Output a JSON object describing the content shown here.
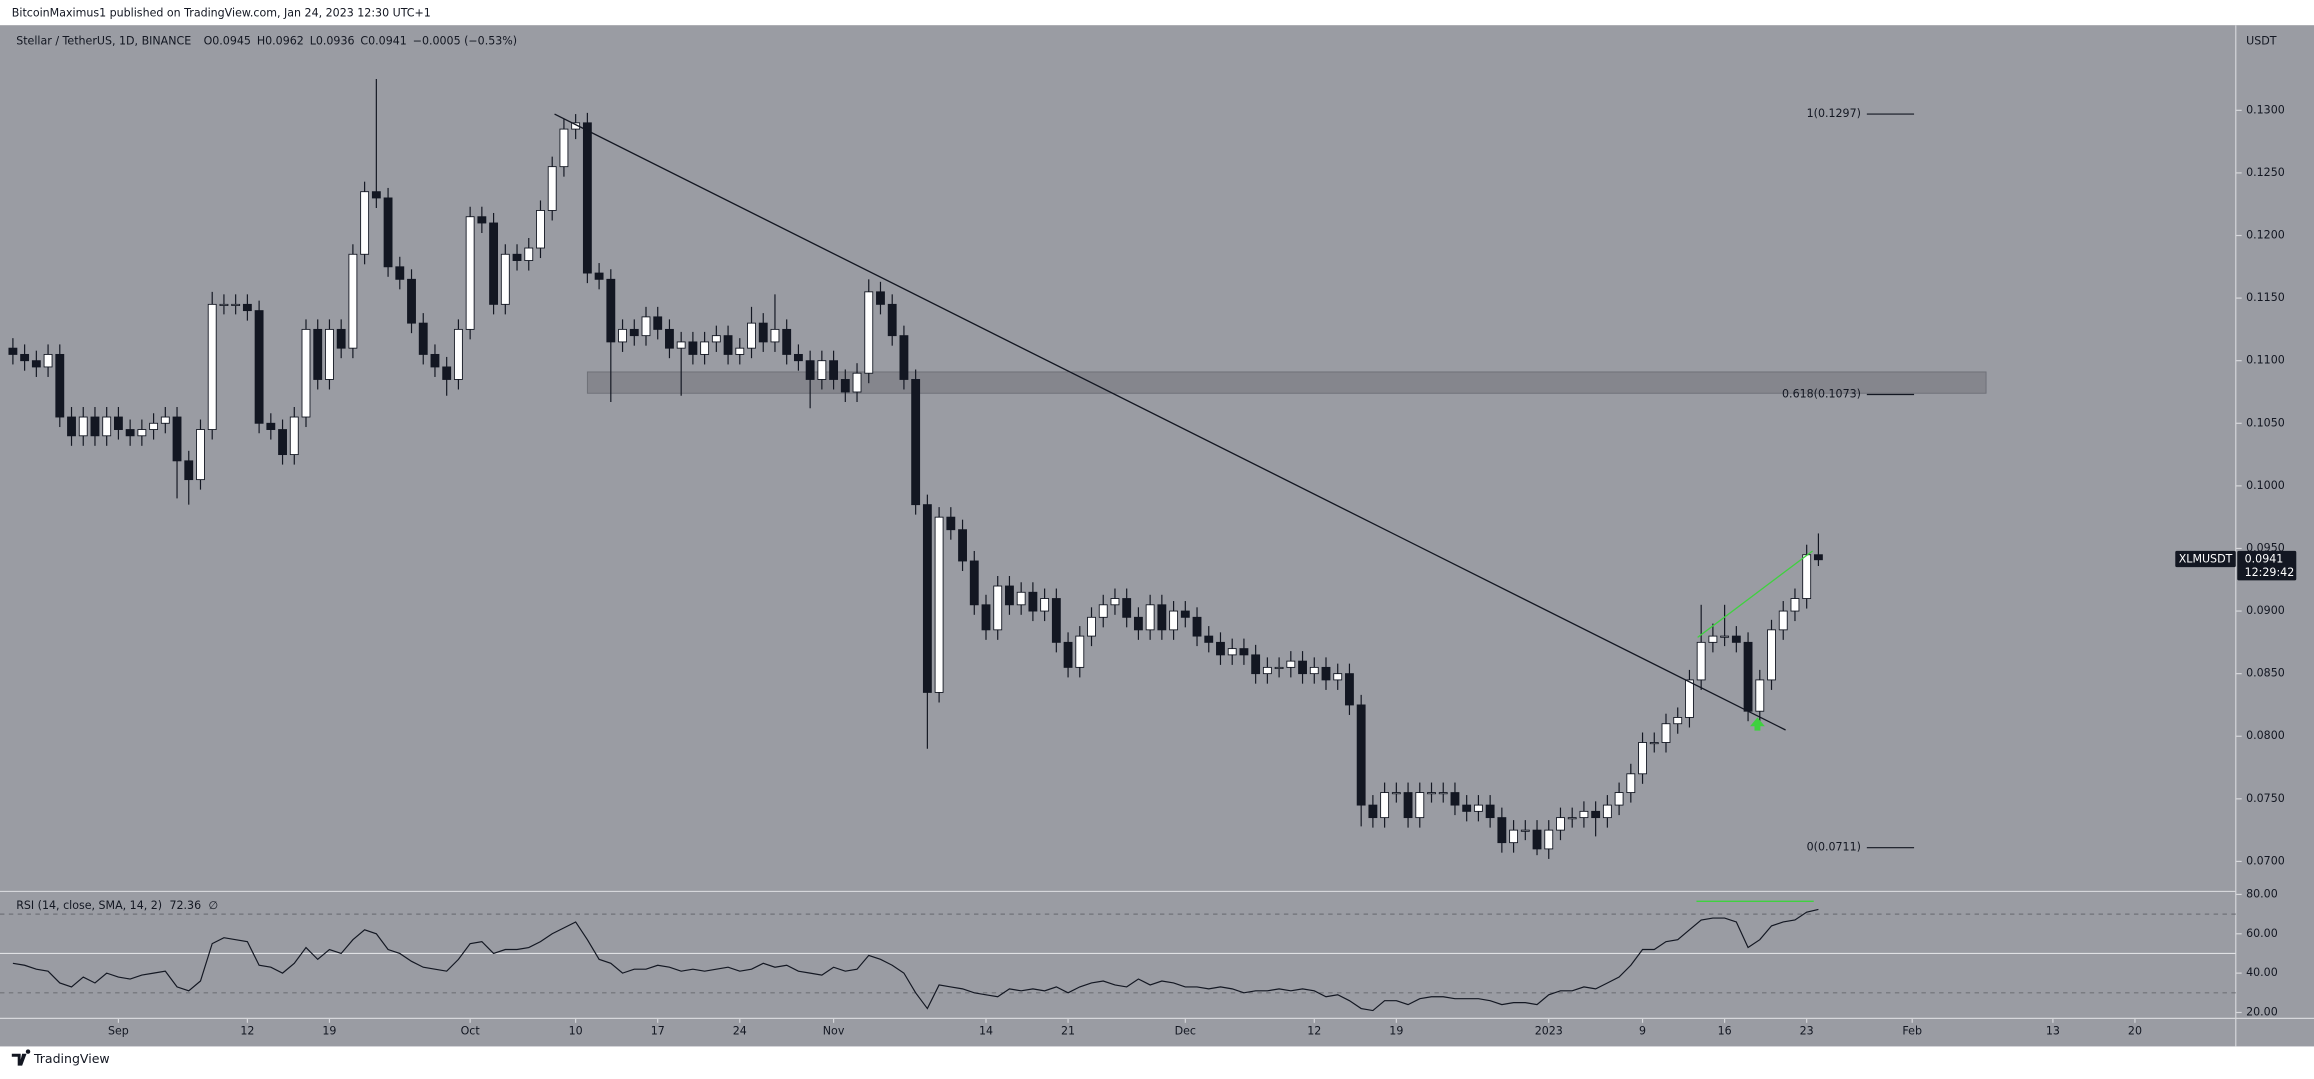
{
  "chart_data": {
    "type": "candlestick",
    "header": "BitcoinMaximus1 published on TradingView.com, Jan 24, 2023 12:30 UTC+1",
    "title": "Stellar / TetherUS, 1D, BINANCE",
    "ohlc_labels": [
      "O",
      "H",
      "L",
      "C"
    ],
    "change": "−0.0005 (−0.53%)",
    "symbol": "XLMUSDT",
    "countdown": "12:29:42",
    "y_axis_label": "USDT",
    "footer": "TradingView",
    "up_color": "#ffffff",
    "down_color": "#131722",
    "background": "#9a9ca3",
    "xlim": [
      -1.1,
      189.6
    ],
    "xticks": [
      {
        "value": 9,
        "label": "Sep"
      },
      {
        "value": 20,
        "label": "12"
      },
      {
        "value": 27,
        "label": "19"
      },
      {
        "value": 39,
        "label": "Oct"
      },
      {
        "value": 48,
        "label": "10"
      },
      {
        "value": 55,
        "label": "17"
      },
      {
        "value": 62,
        "label": "24"
      },
      {
        "value": 70,
        "label": "Nov"
      },
      {
        "value": 83,
        "label": "14"
      },
      {
        "value": 90,
        "label": "21"
      },
      {
        "value": 100,
        "label": "Dec"
      },
      {
        "value": 111,
        "label": "12"
      },
      {
        "value": 118,
        "label": "19"
      },
      {
        "value": 131,
        "label": "2023"
      },
      {
        "value": 139,
        "label": "9"
      },
      {
        "value": 146,
        "label": "16"
      },
      {
        "value": 153,
        "label": "23"
      },
      {
        "value": 162,
        "label": "Feb"
      },
      {
        "value": 174,
        "label": "13"
      },
      {
        "value": 181,
        "label": "20"
      }
    ],
    "ylim": [
      0.0676,
      0.1368
    ],
    "yticks": [
      {
        "value": 0.07,
        "label": "0.0700"
      },
      {
        "value": 0.075,
        "label": "0.0750"
      },
      {
        "value": 0.08,
        "label": "0.0800"
      },
      {
        "value": 0.085,
        "label": "0.0850"
      },
      {
        "value": 0.09,
        "label": "0.0900"
      },
      {
        "value": 0.095,
        "label": "0.0950"
      },
      {
        "value": 0.1,
        "label": "0.1000"
      },
      {
        "value": 0.105,
        "label": "0.1050"
      },
      {
        "value": 0.11,
        "label": "0.1100"
      },
      {
        "value": 0.115,
        "label": "0.1150"
      },
      {
        "value": 0.12,
        "label": "0.1200"
      },
      {
        "value": 0.125,
        "label": "0.1250"
      },
      {
        "value": 0.13,
        "label": "0.1300"
      }
    ],
    "candles": [
      [
        0.111,
        0.1118,
        0.1097,
        0.1105
      ],
      [
        0.1105,
        0.1113,
        0.1092,
        0.11
      ],
      [
        0.11,
        0.1108,
        0.1087,
        0.1095
      ],
      [
        0.1095,
        0.1113,
        0.1087,
        0.1105
      ],
      [
        0.1105,
        0.1113,
        0.1047,
        0.1055
      ],
      [
        0.1055,
        0.1063,
        0.1032,
        0.104
      ],
      [
        0.104,
        0.1063,
        0.1032,
        0.1055
      ],
      [
        0.1055,
        0.1063,
        0.1032,
        0.104
      ],
      [
        0.104,
        0.1063,
        0.1032,
        0.1055
      ],
      [
        0.1055,
        0.1063,
        0.1037,
        0.1045
      ],
      [
        0.1045,
        0.1053,
        0.1032,
        0.104
      ],
      [
        0.104,
        0.1053,
        0.1032,
        0.1045
      ],
      [
        0.1045,
        0.1058,
        0.1037,
        0.105
      ],
      [
        0.105,
        0.1063,
        0.1042,
        0.1055
      ],
      [
        0.1055,
        0.1063,
        0.099,
        0.102
      ],
      [
        0.102,
        0.1028,
        0.0985,
        0.1005
      ],
      [
        0.1005,
        0.1053,
        0.0997,
        0.1045
      ],
      [
        0.1045,
        0.1155,
        0.1037,
        0.1145
      ],
      [
        0.1145,
        0.1153,
        0.1137,
        0.1145
      ],
      [
        0.1145,
        0.1153,
        0.1137,
        0.1145
      ],
      [
        0.1145,
        0.1153,
        0.1132,
        0.114
      ],
      [
        0.114,
        0.1148,
        0.1042,
        0.105
      ],
      [
        0.105,
        0.1058,
        0.1037,
        0.1045
      ],
      [
        0.1045,
        0.1053,
        0.1017,
        0.1025
      ],
      [
        0.1025,
        0.1063,
        0.1017,
        0.1055
      ],
      [
        0.1055,
        0.1133,
        0.1047,
        0.1125
      ],
      [
        0.1125,
        0.1133,
        0.1077,
        0.1085
      ],
      [
        0.1085,
        0.1133,
        0.1077,
        0.1125
      ],
      [
        0.1125,
        0.1133,
        0.1102,
        0.111
      ],
      [
        0.111,
        0.1193,
        0.1102,
        0.1185
      ],
      [
        0.1185,
        0.1243,
        0.1177,
        0.1235
      ],
      [
        0.1235,
        0.1325,
        0.1222,
        0.123
      ],
      [
        0.123,
        0.1238,
        0.1167,
        0.1175
      ],
      [
        0.1175,
        0.1183,
        0.1157,
        0.1165
      ],
      [
        0.1165,
        0.1173,
        0.1122,
        0.113
      ],
      [
        0.113,
        0.1138,
        0.1097,
        0.1105
      ],
      [
        0.1105,
        0.1113,
        0.1087,
        0.1095
      ],
      [
        0.1095,
        0.1103,
        0.1072,
        0.1085
      ],
      [
        0.1085,
        0.1133,
        0.1077,
        0.1125
      ],
      [
        0.1125,
        0.1223,
        0.1117,
        0.1215
      ],
      [
        0.1215,
        0.1223,
        0.1202,
        0.121
      ],
      [
        0.121,
        0.1218,
        0.1137,
        0.1145
      ],
      [
        0.1145,
        0.1193,
        0.1137,
        0.1185
      ],
      [
        0.1185,
        0.1193,
        0.1172,
        0.118
      ],
      [
        0.118,
        0.1198,
        0.1172,
        0.119
      ],
      [
        0.119,
        0.1228,
        0.1182,
        0.122
      ],
      [
        0.122,
        0.1263,
        0.1212,
        0.1255
      ],
      [
        0.1255,
        0.1293,
        0.1247,
        0.1285
      ],
      [
        0.1285,
        0.1297,
        0.1277,
        0.129
      ],
      [
        0.129,
        0.1298,
        0.1162,
        0.117
      ],
      [
        0.117,
        0.1178,
        0.1157,
        0.1165
      ],
      [
        0.1165,
        0.1173,
        0.1067,
        0.1115
      ],
      [
        0.1115,
        0.1133,
        0.1107,
        0.1125
      ],
      [
        0.1125,
        0.1133,
        0.1112,
        0.112
      ],
      [
        0.112,
        0.1143,
        0.1112,
        0.1135
      ],
      [
        0.1135,
        0.1143,
        0.1117,
        0.1125
      ],
      [
        0.1125,
        0.1133,
        0.1102,
        0.111
      ],
      [
        0.111,
        0.1123,
        0.1072,
        0.1115
      ],
      [
        0.1115,
        0.1123,
        0.1097,
        0.1105
      ],
      [
        0.1105,
        0.1123,
        0.1097,
        0.1115
      ],
      [
        0.1115,
        0.1128,
        0.1107,
        0.112
      ],
      [
        0.112,
        0.1128,
        0.1097,
        0.1105
      ],
      [
        0.1105,
        0.1118,
        0.1097,
        0.111
      ],
      [
        0.111,
        0.1143,
        0.1102,
        0.113
      ],
      [
        0.113,
        0.1138,
        0.1107,
        0.1115
      ],
      [
        0.1115,
        0.1153,
        0.1107,
        0.1125
      ],
      [
        0.1125,
        0.1133,
        0.1097,
        0.1105
      ],
      [
        0.1105,
        0.1113,
        0.1092,
        0.11
      ],
      [
        0.11,
        0.1108,
        0.1062,
        0.1085
      ],
      [
        0.1085,
        0.1108,
        0.1077,
        0.11
      ],
      [
        0.11,
        0.1108,
        0.1077,
        0.1085
      ],
      [
        0.1085,
        0.1093,
        0.1067,
        0.1075
      ],
      [
        0.1075,
        0.1098,
        0.1067,
        0.109
      ],
      [
        0.109,
        0.1165,
        0.1082,
        0.1155
      ],
      [
        0.1155,
        0.1163,
        0.1137,
        0.1145
      ],
      [
        0.1145,
        0.1153,
        0.1112,
        0.112
      ],
      [
        0.112,
        0.1128,
        0.1077,
        0.1085
      ],
      [
        0.1085,
        0.1093,
        0.0977,
        0.0985
      ],
      [
        0.0985,
        0.0993,
        0.079,
        0.0835
      ],
      [
        0.0835,
        0.0983,
        0.0827,
        0.0975
      ],
      [
        0.0975,
        0.0983,
        0.0957,
        0.0965
      ],
      [
        0.0965,
        0.0973,
        0.0932,
        0.094
      ],
      [
        0.094,
        0.0948,
        0.0897,
        0.0905
      ],
      [
        0.0905,
        0.0913,
        0.0877,
        0.0885
      ],
      [
        0.0885,
        0.0928,
        0.0877,
        0.092
      ],
      [
        0.092,
        0.0928,
        0.0897,
        0.0905
      ],
      [
        0.0905,
        0.0923,
        0.0897,
        0.0915
      ],
      [
        0.0915,
        0.0923,
        0.0892,
        0.09
      ],
      [
        0.09,
        0.0918,
        0.0892,
        0.091
      ],
      [
        0.091,
        0.0918,
        0.0867,
        0.0875
      ],
      [
        0.0875,
        0.0883,
        0.0847,
        0.0855
      ],
      [
        0.0855,
        0.0888,
        0.0847,
        0.088
      ],
      [
        0.088,
        0.0903,
        0.0872,
        0.0895
      ],
      [
        0.0895,
        0.0913,
        0.0887,
        0.0905
      ],
      [
        0.0905,
        0.0918,
        0.0897,
        0.091
      ],
      [
        0.091,
        0.0918,
        0.0887,
        0.0895
      ],
      [
        0.0895,
        0.0903,
        0.0877,
        0.0885
      ],
      [
        0.0885,
        0.0913,
        0.0877,
        0.0905
      ],
      [
        0.0905,
        0.0913,
        0.0877,
        0.0885
      ],
      [
        0.0885,
        0.0908,
        0.0877,
        0.09
      ],
      [
        0.09,
        0.0908,
        0.0887,
        0.0895
      ],
      [
        0.0895,
        0.0903,
        0.0872,
        0.088
      ],
      [
        0.088,
        0.0888,
        0.0867,
        0.0875
      ],
      [
        0.0875,
        0.0883,
        0.0857,
        0.0865
      ],
      [
        0.0865,
        0.0878,
        0.0857,
        0.087
      ],
      [
        0.087,
        0.0878,
        0.0857,
        0.0865
      ],
      [
        0.0865,
        0.0873,
        0.0842,
        0.085
      ],
      [
        0.085,
        0.0863,
        0.0842,
        0.0855
      ],
      [
        0.0855,
        0.0863,
        0.0847,
        0.0855
      ],
      [
        0.0855,
        0.0868,
        0.0847,
        0.086
      ],
      [
        0.086,
        0.0868,
        0.0842,
        0.085
      ],
      [
        0.085,
        0.0863,
        0.0842,
        0.0855
      ],
      [
        0.0855,
        0.0863,
        0.0837,
        0.0845
      ],
      [
        0.0845,
        0.0858,
        0.0837,
        0.085
      ],
      [
        0.085,
        0.0858,
        0.0817,
        0.0825
      ],
      [
        0.0825,
        0.0833,
        0.0728,
        0.0745
      ],
      [
        0.0745,
        0.0753,
        0.0727,
        0.0735
      ],
      [
        0.0735,
        0.0763,
        0.0727,
        0.0755
      ],
      [
        0.0755,
        0.0763,
        0.0747,
        0.0755
      ],
      [
        0.0755,
        0.0763,
        0.0727,
        0.0735
      ],
      [
        0.0735,
        0.0763,
        0.0727,
        0.0755
      ],
      [
        0.0755,
        0.0763,
        0.0747,
        0.0755
      ],
      [
        0.0755,
        0.0763,
        0.0747,
        0.0755
      ],
      [
        0.0755,
        0.0763,
        0.0737,
        0.0745
      ],
      [
        0.0745,
        0.0753,
        0.0732,
        0.074
      ],
      [
        0.074,
        0.0753,
        0.0732,
        0.0745
      ],
      [
        0.0745,
        0.0753,
        0.0727,
        0.0735
      ],
      [
        0.0735,
        0.0743,
        0.0707,
        0.0715
      ],
      [
        0.0715,
        0.0733,
        0.0707,
        0.0725
      ],
      [
        0.0725,
        0.0733,
        0.0717,
        0.0725
      ],
      [
        0.0725,
        0.0733,
        0.0705,
        0.071
      ],
      [
        0.071,
        0.0733,
        0.0702,
        0.0725
      ],
      [
        0.0725,
        0.0743,
        0.0717,
        0.0735
      ],
      [
        0.0735,
        0.0743,
        0.0727,
        0.0735
      ],
      [
        0.0735,
        0.0748,
        0.0727,
        0.074
      ],
      [
        0.074,
        0.0748,
        0.072,
        0.0735
      ],
      [
        0.0735,
        0.0753,
        0.0727,
        0.0745
      ],
      [
        0.0745,
        0.0763,
        0.0737,
        0.0755
      ],
      [
        0.0755,
        0.0778,
        0.0747,
        0.077
      ],
      [
        0.077,
        0.0803,
        0.0762,
        0.0795
      ],
      [
        0.0795,
        0.0803,
        0.0787,
        0.0795
      ],
      [
        0.0795,
        0.0818,
        0.0787,
        0.081
      ],
      [
        0.081,
        0.0823,
        0.0802,
        0.0815
      ],
      [
        0.0815,
        0.0853,
        0.0807,
        0.0845
      ],
      [
        0.0845,
        0.0905,
        0.0837,
        0.0875
      ],
      [
        0.0875,
        0.089,
        0.0867,
        0.088
      ],
      [
        0.088,
        0.0905,
        0.0872,
        0.088
      ],
      [
        0.088,
        0.0888,
        0.0867,
        0.0875
      ],
      [
        0.0875,
        0.0883,
        0.0812,
        0.082
      ],
      [
        0.082,
        0.0853,
        0.0812,
        0.0845
      ],
      [
        0.0845,
        0.0893,
        0.0837,
        0.0885
      ],
      [
        0.0885,
        0.0908,
        0.0877,
        0.09
      ],
      [
        0.09,
        0.0918,
        0.0892,
        0.091
      ],
      [
        0.091,
        0.0953,
        0.0902,
        0.0945
      ],
      [
        0.0945,
        0.0962,
        0.0936,
        0.0941
      ]
    ],
    "fib_levels": [
      {
        "label": "1(0.1297)",
        "value": 0.1297
      },
      {
        "label": "0.618(0.1073)",
        "value": 0.1073
      },
      {
        "label": "0(0.0711)",
        "value": 0.0711
      }
    ],
    "zone": {
      "x": [
        49,
        168.3
      ],
      "values": [
        0.1091,
        0.1074
      ],
      "color": "#7d7f86"
    },
    "trendline": {
      "x": [
        46.2,
        151.2
      ],
      "values": [
        0.1297,
        0.0805
      ],
      "color": "#131722"
    },
    "green_line": {
      "x": [
        143.7,
        153.5
      ],
      "values": [
        0.0879,
        0.0948
      ],
      "color": "#3fd13f"
    },
    "marker": {
      "x": 148.8,
      "value": 0.0808,
      "color": "#3fd13f"
    },
    "rsi": {
      "title": "RSI (14, close, SMA, 14, 2)",
      "na_symbol": "∅",
      "color": "#131722",
      "ylim": [
        17,
        81.5
      ],
      "yticks": [
        {
          "value": 20,
          "label": "20.00"
        },
        {
          "value": 40,
          "label": "40.00"
        },
        {
          "value": 60,
          "label": "60.00"
        },
        {
          "value": 80,
          "label": "80.00"
        }
      ],
      "bands": [
        70,
        50,
        30
      ],
      "values": [
        45,
        44,
        42,
        41,
        35,
        33,
        38,
        35,
        40,
        38,
        37,
        39,
        40,
        41,
        33,
        31,
        36,
        55,
        58,
        57,
        56,
        44,
        43,
        40,
        45,
        53,
        47,
        52,
        50,
        57,
        62,
        60,
        52,
        50,
        46,
        43,
        42,
        41,
        47,
        55,
        56,
        50,
        52,
        52,
        53,
        56,
        60,
        63,
        66,
        57,
        47,
        45,
        40,
        42,
        42,
        44,
        43,
        41,
        42,
        41,
        42,
        43,
        41,
        42,
        45,
        43,
        44,
        41,
        40,
        39,
        43,
        41,
        42,
        49,
        47,
        44,
        40,
        30,
        22,
        34,
        33,
        32,
        30,
        29,
        28,
        32,
        31,
        32,
        31,
        33,
        30,
        33,
        35,
        36,
        34,
        33,
        37,
        34,
        36,
        35,
        33,
        33,
        32,
        33,
        32,
        30,
        31,
        31,
        32,
        31,
        32,
        31,
        28,
        29,
        26,
        22,
        21,
        26,
        26,
        24,
        27,
        28,
        28,
        27,
        27,
        27,
        26,
        24,
        25,
        25,
        24,
        29,
        31,
        31,
        33,
        32,
        35,
        38,
        44,
        52,
        52,
        56,
        57,
        62,
        67,
        68,
        68,
        66,
        53,
        57,
        64,
        66,
        67,
        71,
        72.36
      ],
      "divergence": {
        "x": [
          143.6,
          153.6
        ],
        "values": [
          76.5,
          76.5
        ],
        "color": "#3fd13f"
      }
    }
  }
}
